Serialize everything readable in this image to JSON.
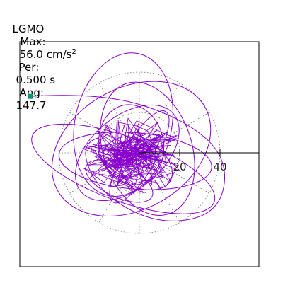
{
  "header": {
    "station": "LGMO",
    "max_label": "Max:",
    "max_value": "56.0 cm/s",
    "max_exponent": "2",
    "per_label": "Per:",
    "per_value": "0.500 s",
    "ang_label": "Ang:",
    "ang_value": "147.7"
  },
  "chart_data": {
    "type": "scatter",
    "title": "",
    "xlabel": "",
    "ylabel": "",
    "ticks": [
      {
        "label": "20",
        "value": 20
      },
      {
        "label": "40",
        "value": 40
      }
    ],
    "rings": [
      20,
      40
    ],
    "xlim": [
      -60,
      60
    ],
    "ylim": [
      -60,
      60
    ],
    "grid": "dotted polar rings + radial lines",
    "series": [
      {
        "orbit_ellipses": [
          {
            "cx": -8,
            "cy": -8,
            "rx": 48,
            "ry": 16,
            "rot": -20
          },
          {
            "cx": -4,
            "cy": 2,
            "rx": 42,
            "ry": 30,
            "rot": 30
          },
          {
            "cx": -8,
            "cy": 14,
            "rx": 24,
            "ry": 36,
            "rot": -12
          },
          {
            "cx": -2,
            "cy": -4,
            "rx": 38,
            "ry": 14,
            "rot": -5
          },
          {
            "cx": 4,
            "cy": 2,
            "rx": 22,
            "ry": 34,
            "rot": 18
          },
          {
            "cx": -6,
            "cy": 0,
            "rx": 30,
            "ry": 18,
            "rot": 40
          },
          {
            "cx": -2,
            "cy": -4,
            "rx": 20,
            "ry": 12,
            "rot": -30
          },
          {
            "cx": -4,
            "cy": 4,
            "rx": 16,
            "ry": 20,
            "rot": 10
          },
          {
            "cx": 0,
            "cy": -2,
            "rx": 26,
            "ry": 8,
            "rot": 60
          },
          {
            "cx": -6,
            "cy": -2,
            "rx": 12,
            "ry": 10,
            "rot": 0
          },
          {
            "cx": -10,
            "cy": -14,
            "rx": 18,
            "ry": 8,
            "rot": -25
          }
        ],
        "path_points": [
          [
            -54,
            28
          ],
          [
            -20,
            30
          ],
          [
            20,
            18
          ],
          [
            44,
            -2
          ],
          [
            40,
            -30
          ],
          [
            10,
            -36
          ],
          [
            -20,
            -20
          ],
          [
            -30,
            5
          ],
          [
            -10,
            10
          ]
        ]
      }
    ],
    "colors": {
      "trace": "#8800cc",
      "grid": "#777777",
      "axis": "#000000",
      "marker": "#009977"
    }
  }
}
